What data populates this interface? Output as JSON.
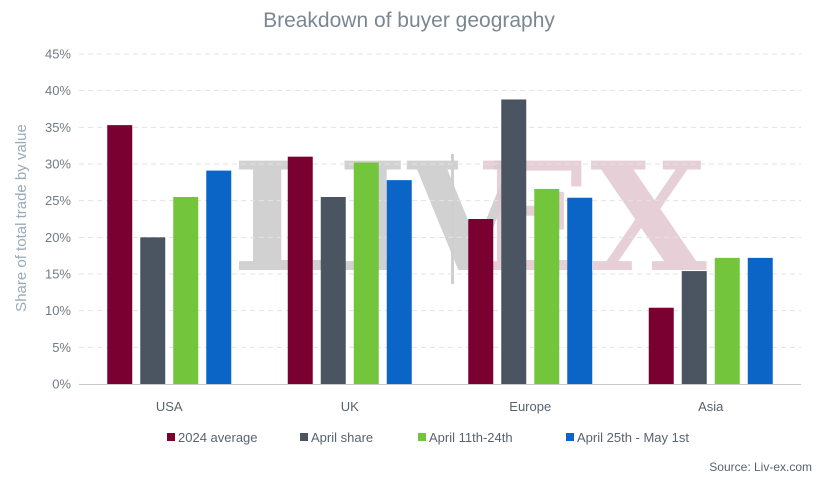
{
  "chart_data": {
    "type": "bar",
    "title": "Breakdown of buyer geography",
    "ylabel": "Share of total trade by value",
    "xlabel": "",
    "categories": [
      "USA",
      "UK",
      "Europe",
      "Asia"
    ],
    "ylim": [
      0,
      45
    ],
    "yticks": [
      0,
      5,
      10,
      15,
      20,
      25,
      30,
      35,
      40,
      45
    ],
    "ytick_labels": [
      "0%",
      "5%",
      "10%",
      "15%",
      "20%",
      "25%",
      "30%",
      "35%",
      "40%",
      "45%"
    ],
    "grid": true,
    "legend_position": "bottom",
    "series": [
      {
        "name": "2024 average",
        "color": "#7b0032",
        "values": [
          35.3,
          31.0,
          22.5,
          10.4
        ]
      },
      {
        "name": "April share",
        "color": "#4a5561",
        "values": [
          20.0,
          25.5,
          38.8,
          15.4
        ]
      },
      {
        "name": "April 11th-24th",
        "color": "#73c53c",
        "values": [
          25.5,
          30.2,
          26.6,
          17.2
        ]
      },
      {
        "name": "April 25th - May 1st",
        "color": "#0b65c6",
        "values": [
          29.1,
          27.8,
          25.4,
          17.2
        ]
      }
    ],
    "source": "Source: Liv-ex.com",
    "watermark": "LIV-EX"
  }
}
